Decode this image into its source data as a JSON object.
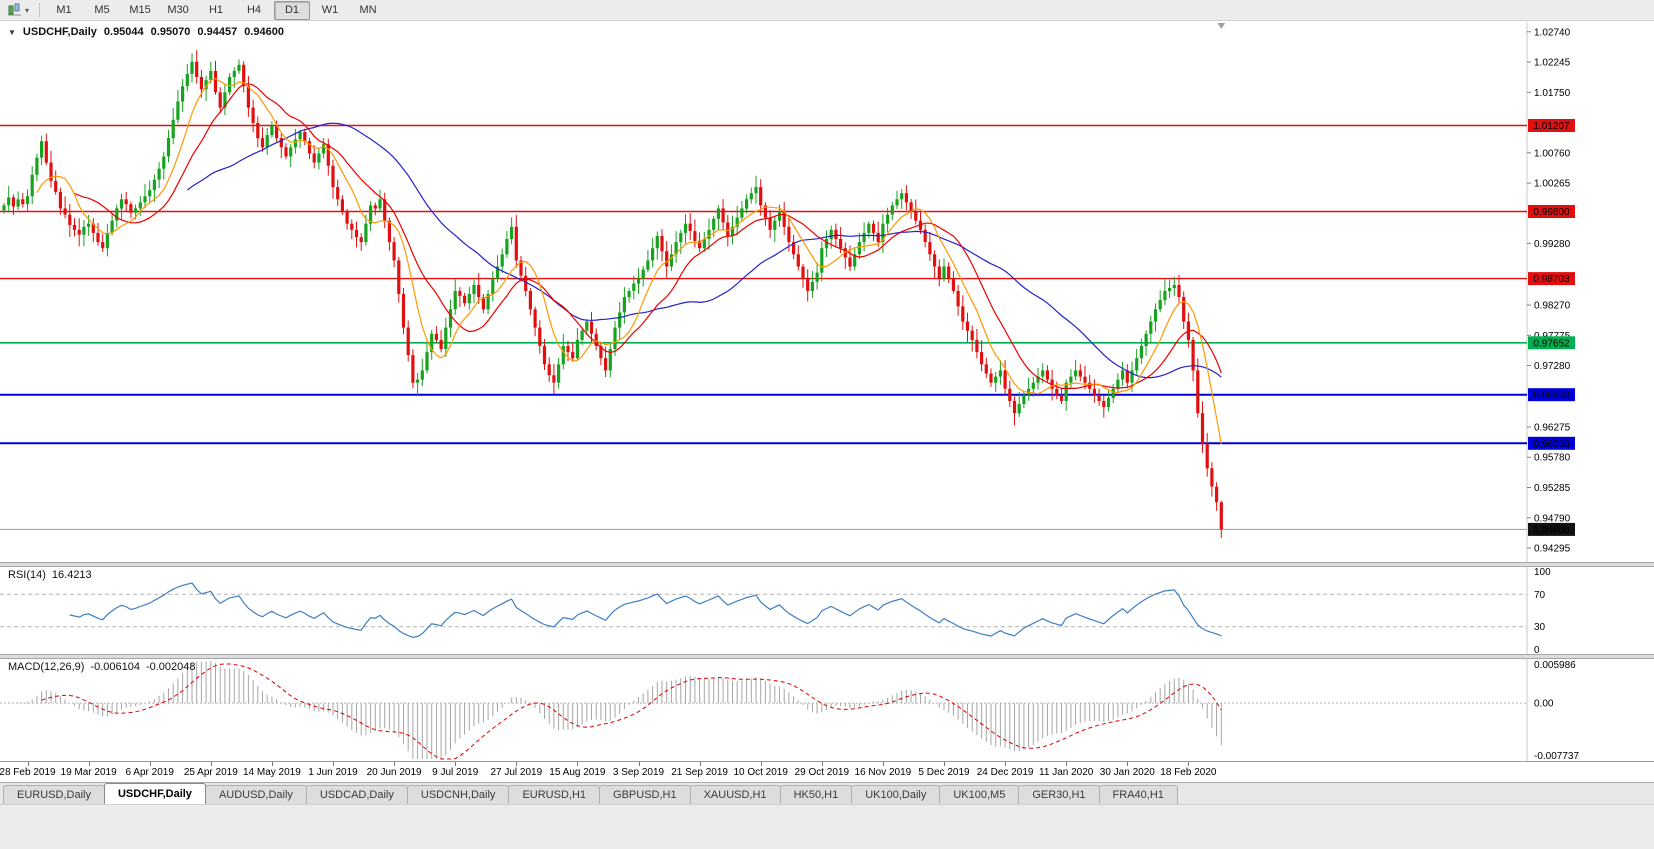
{
  "toolbar": {
    "timeframes": [
      "M1",
      "M5",
      "M15",
      "M30",
      "H1",
      "H4",
      "D1",
      "W1",
      "MN"
    ],
    "active_timeframe": "D1"
  },
  "chart": {
    "title": "USDCHF,Daily",
    "quote": {
      "open": "0.95044",
      "high": "0.95070",
      "low": "0.94457",
      "close": "0.94600"
    },
    "range": {
      "top": 1.029,
      "bottom": 0.9405
    },
    "colors": {
      "up": "#17a31f",
      "down": "#e01010",
      "ma_fast": "#ff9900",
      "ma_mid": "#ee0000",
      "ma_slow": "#2323cc"
    },
    "ma_periods": {
      "fast": 8,
      "mid": 16,
      "slow": 40
    },
    "price_axis": {
      "ticks": [
        {
          "label": "1.02740",
          "value": 1.0274
        },
        {
          "label": "1.02245",
          "value": 1.02245
        },
        {
          "label": "1.01750",
          "value": 1.0175
        },
        {
          "label": "1.00760",
          "value": 1.0076
        },
        {
          "label": "1.00265",
          "value": 1.00265
        },
        {
          "label": "0.99280",
          "value": 0.9928
        },
        {
          "label": "0.98270",
          "value": 0.9827
        },
        {
          "label": "0.97775",
          "value": 0.97775
        },
        {
          "label": "0.97280",
          "value": 0.9728
        },
        {
          "label": "0.96275",
          "value": 0.96275
        },
        {
          "label": "0.95780",
          "value": 0.9578
        },
        {
          "label": "0.95285",
          "value": 0.95285
        },
        {
          "label": "0.94790",
          "value": 0.9479
        },
        {
          "label": "0.94295",
          "value": 0.94295
        }
      ],
      "levels": [
        {
          "label": "1.01207",
          "value": 1.01207,
          "color": "#e01010",
          "thickness": 1.4,
          "type": "resistance"
        },
        {
          "label": "0.99800",
          "value": 0.998,
          "color": "#e01010",
          "thickness": 1.4,
          "type": "resistance"
        },
        {
          "label": "0.98703",
          "value": 0.98703,
          "color": "#e01010",
          "thickness": 1.4,
          "type": "resistance"
        },
        {
          "label": "0.97652",
          "value": 0.97652,
          "color": "#00b050",
          "thickness": 1.6,
          "type": "support"
        },
        {
          "label": "0.96803",
          "value": 0.96803,
          "color": "#0000d8",
          "thickness": 2,
          "type": "support"
        },
        {
          "label": "0.96008",
          "value": 0.96008,
          "color": "#0000d8",
          "thickness": 2,
          "type": "support"
        }
      ],
      "current": {
        "label": "0.94600",
        "value": 0.946,
        "color": "#111111"
      }
    }
  },
  "chart_data": {
    "type": "candlestick",
    "symbol": "USDCHF",
    "timeframe": "Daily",
    "last_candle": {
      "open": 0.95044,
      "high": 0.9507,
      "low": 0.94457,
      "close": 0.946
    },
    "closes": [
      0.999,
      1.0003,
      0.9988,
      1.0,
      0.9992,
      1.0005,
      1.004,
      1.0068,
      1.0095,
      1.006,
      1.003,
      1.0012,
      0.9985,
      0.9975,
      0.9958,
      0.995,
      0.9942,
      0.9955,
      0.996,
      0.9945,
      0.993,
      0.992,
      0.9945,
      0.9965,
      0.9985,
      1.0,
      0.9992,
      0.9978,
      0.9985,
      0.9995,
      1.0005,
      1.0015,
      1.0032,
      1.005,
      1.007,
      1.01,
      1.013,
      1.016,
      1.0185,
      1.0205,
      1.0225,
      1.02,
      1.018,
      1.0195,
      1.021,
      1.0175,
      1.015,
      1.0175,
      1.02,
      1.021,
      1.022,
      1.0185,
      1.015,
      1.0125,
      1.01,
      1.0085,
      1.0105,
      1.012,
      1.01,
      1.0085,
      1.007,
      1.0085,
      1.0098,
      1.011,
      1.0095,
      1.0075,
      1.006,
      1.0075,
      1.009,
      1.0055,
      1.002,
      1.0,
      0.998,
      0.996,
      0.995,
      0.9938,
      0.993,
      0.996,
      0.999,
      0.9985,
      1.0,
      0.9965,
      0.993,
      0.99,
      0.9845,
      0.979,
      0.9745,
      0.97,
      0.9705,
      0.972,
      0.975,
      0.978,
      0.977,
      0.9755,
      0.979,
      0.982,
      0.985,
      0.9842,
      0.983,
      0.9845,
      0.986,
      0.984,
      0.982,
      0.9845,
      0.987,
      0.989,
      0.991,
      0.9935,
      0.9955,
      0.99,
      0.9875,
      0.985,
      0.982,
      0.979,
      0.976,
      0.973,
      0.9712,
      0.97,
      0.973,
      0.976,
      0.975,
      0.974,
      0.977,
      0.9785,
      0.98,
      0.978,
      0.976,
      0.974,
      0.972,
      0.9755,
      0.979,
      0.9815,
      0.984,
      0.985,
      0.9862,
      0.987,
      0.9885,
      0.99,
      0.992,
      0.994,
      0.9915,
      0.989,
      0.991,
      0.993,
      0.9945,
      0.996,
      0.9948,
      0.9932,
      0.992,
      0.9935,
      0.995,
      0.9968,
      0.9985,
      0.9962,
      0.994,
      0.9955,
      0.997,
      0.9985,
      1.0,
      1.001,
      1.002,
      0.999,
      0.997,
      0.995,
      0.9965,
      0.998,
      0.9955,
      0.993,
      0.991,
      0.989,
      0.987,
      0.985,
      0.9865,
      0.988,
      0.992,
      0.9935,
      0.995,
      0.9935,
      0.992,
      0.9905,
      0.989,
      0.991,
      0.993,
      0.9945,
      0.996,
      0.9945,
      0.993,
      0.996,
      0.9975,
      0.999,
      1.0,
      1.001,
      0.9995,
      0.998,
      0.9965,
      0.995,
      0.993,
      0.991,
      0.989,
      0.987,
      0.989,
      0.987,
      0.985,
      0.9825,
      0.98,
      0.9785,
      0.977,
      0.975,
      0.973,
      0.9715,
      0.97,
      0.971,
      0.972,
      0.969,
      0.967,
      0.965,
      0.9665,
      0.968,
      0.969,
      0.97,
      0.971,
      0.972,
      0.9705,
      0.969,
      0.968,
      0.967,
      0.97,
      0.971,
      0.972,
      0.971,
      0.97,
      0.969,
      0.968,
      0.967,
      0.966,
      0.9675,
      0.969,
      0.9705,
      0.972,
      0.97,
      0.972,
      0.974,
      0.976,
      0.978,
      0.98,
      0.982,
      0.9835,
      0.985,
      0.9855,
      0.986,
      0.984,
      0.98,
      0.977,
      0.972,
      0.965,
      0.96,
      0.956,
      0.953,
      0.95044,
      0.946
    ],
    "x_axis": {
      "labels": [
        "28 Feb 2019",
        "19 Mar 2019",
        "6 Apr 2019",
        "25 Apr 2019",
        "14 May 2019",
        "1 Jun 2019",
        "20 Jun 2019",
        "9 Jul 2019",
        "27 Jul 2019",
        "15 Aug 2019",
        "3 Sep 2019",
        "21 Sep 2019",
        "10 Oct 2019",
        "29 Oct 2019",
        "16 Nov 2019",
        "5 Dec 2019",
        "24 Dec 2019",
        "11 Jan 2020",
        "30 Jan 2020",
        "18 Feb 2020"
      ],
      "first_label_candle_index": 5,
      "label_every_n_candles": 13
    }
  },
  "rsi": {
    "label": "RSI(14)",
    "value_text": "16.4213",
    "period": 14,
    "color": "#3e7fc1",
    "levels": [
      70,
      30
    ],
    "range": [
      0,
      100
    ],
    "axis": [
      {
        "label": "100",
        "value": 100
      },
      {
        "label": "70",
        "value": 70
      },
      {
        "label": "30",
        "value": 30
      },
      {
        "label": "0",
        "value": 0
      }
    ]
  },
  "macd": {
    "label": "MACD(12,26,9)",
    "macd_text": "-0.006104",
    "signal_text": "-0.002048",
    "fast": 12,
    "slow": 26,
    "signal_period": 9,
    "range": [
      -0.007737,
      0.005986
    ],
    "histogram_color": "#a6a6a6",
    "signal_color": "#e00000",
    "axis": [
      {
        "label": "0.005986",
        "value": 0.005986
      },
      {
        "label": "0.00",
        "value": 0
      },
      {
        "label": "-0.007737",
        "value": -0.007737
      }
    ]
  },
  "tabs": {
    "items": [
      "EURUSD,Daily",
      "USDCHF,Daily",
      "AUDUSD,Daily",
      "USDCAD,Daily",
      "USDCNH,Daily",
      "EURUSD,H1",
      "GBPUSD,H1",
      "XAUUSD,H1",
      "HK50,H1",
      "UK100,Daily",
      "UK100,M5",
      "GER30,H1",
      "FRA40,H1"
    ],
    "active": "USDCHF,Daily"
  }
}
